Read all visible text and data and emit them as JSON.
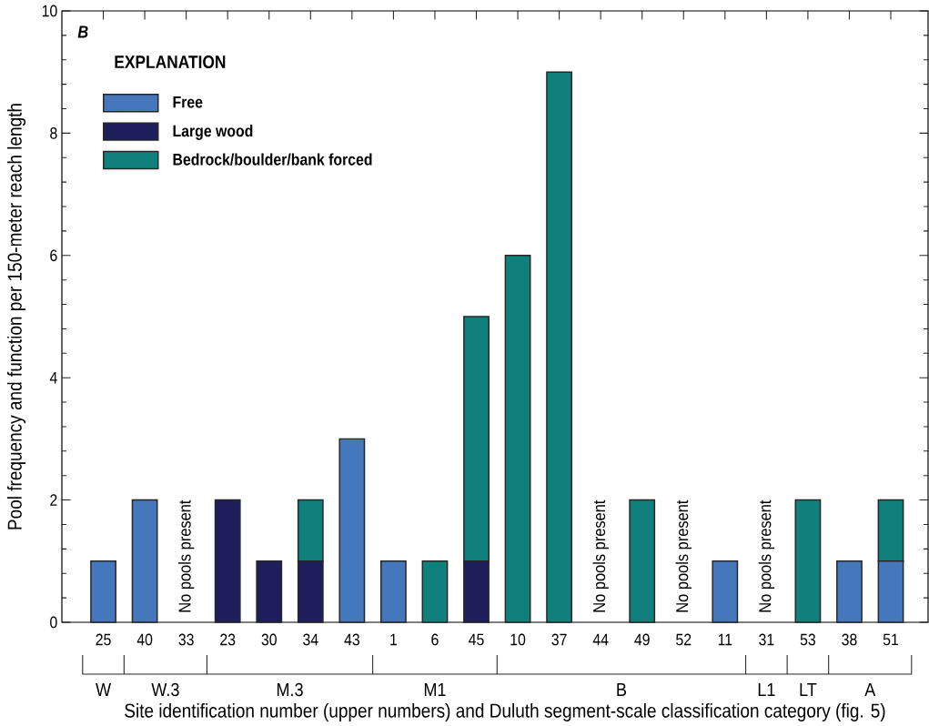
{
  "chart_data": {
    "type": "bar",
    "stacked": true,
    "title": "B",
    "categories": [
      "25",
      "40",
      "33",
      "23",
      "30",
      "34",
      "43",
      "1",
      "6",
      "45",
      "10",
      "37",
      "44",
      "49",
      "52",
      "11",
      "31",
      "53",
      "38",
      "51"
    ],
    "series": [
      {
        "name": "Free",
        "color": "#4577bc",
        "values": [
          1,
          2,
          0,
          0,
          0,
          0,
          3,
          1,
          0,
          0,
          0,
          0,
          0,
          0,
          0,
          1,
          0,
          0,
          1,
          1
        ]
      },
      {
        "name": "Large wood",
        "color": "#1e1e5c",
        "values": [
          0,
          0,
          0,
          2,
          1,
          1,
          0,
          0,
          0,
          1,
          0,
          0,
          0,
          0,
          0,
          0,
          0,
          0,
          0,
          0
        ]
      },
      {
        "name": "Bedrock/boulder/bank forced",
        "color": "#10807c",
        "values": [
          0,
          0,
          0,
          0,
          0,
          1,
          0,
          0,
          1,
          4,
          6,
          9,
          0,
          2,
          0,
          0,
          0,
          2,
          0,
          1
        ]
      }
    ],
    "ylim": [
      0,
      10
    ],
    "yticks": [
      0,
      {
        "value": 0.4,
        "label": null
      },
      {
        "value": 0.8,
        "label": null
      },
      {
        "value": 1.2,
        "label": null
      },
      {
        "value": 1.6,
        "label": null
      },
      2,
      {
        "value": 2.4,
        "label": null
      },
      {
        "value": 2.8,
        "label": null
      },
      {
        "value": 3.2,
        "label": null
      },
      {
        "value": 3.6,
        "label": null
      },
      4,
      {
        "value": 4.4,
        "label": null
      },
      {
        "value": 4.8,
        "label": null
      },
      {
        "value": 5.2,
        "label": null
      },
      {
        "value": 5.6,
        "label": null
      },
      6,
      {
        "value": 6.4,
        "label": null
      },
      {
        "value": 6.8,
        "label": null
      },
      {
        "value": 7.2,
        "label": null
      },
      {
        "value": 7.6,
        "label": null
      },
      8,
      {
        "value": 8.4,
        "label": null
      },
      {
        "value": 8.8,
        "label": null
      },
      {
        "value": 9.2,
        "label": null
      },
      {
        "value": 9.6,
        "label": null
      },
      10
    ],
    "ylabel": "Pool frequency and function per 150-meter reach length",
    "xlabel": "Site identification number (upper numbers) and Duluth segment-scale classification category (fig. 5)",
    "legend": "top left",
    "legend_title": "EXPLANATION",
    "annotations": [
      {
        "text": "No pools present",
        "x": "33",
        "y": 0
      },
      {
        "text": "No pools present",
        "x": "44",
        "y": 0
      },
      {
        "text": "No pools present",
        "x": "52",
        "y": 0
      },
      {
        "text": "No pools present",
        "x": "31",
        "y": 0
      },
      "W",
      "W.3",
      "M.3",
      "M1",
      "B",
      "L1",
      "LT",
      "A"
    ]
  }
}
